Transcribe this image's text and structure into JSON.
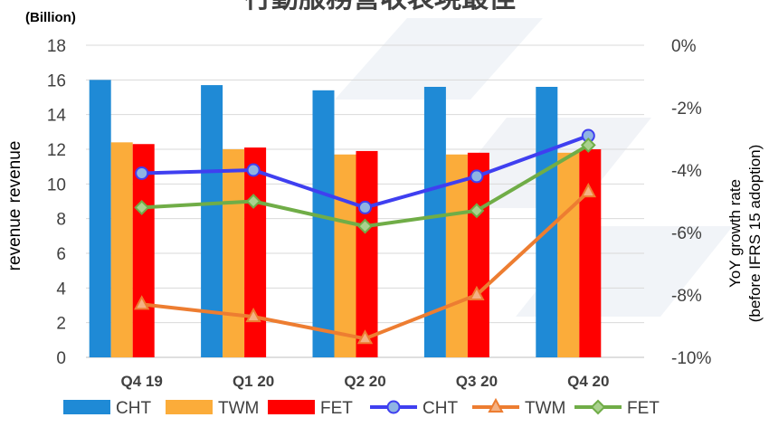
{
  "chart_data": {
    "type": "bar",
    "title": "行動服務營收表現最佳",
    "unit_note": "(Billion)",
    "categories": [
      "Q4 19",
      "Q1 20",
      "Q2 20",
      "Q3 20",
      "Q4 20"
    ],
    "y_left": {
      "label": "revenue",
      "duplicated_label": "revenue",
      "range": [
        0,
        18
      ],
      "ticks": [
        0,
        2,
        4,
        6,
        8,
        10,
        12,
        14,
        16,
        18
      ]
    },
    "y_right": {
      "label_line1": "YoY growth rate",
      "label_line2": "(before IFRS 15 adoption)",
      "range": [
        -10,
        0
      ],
      "ticks": [
        -10,
        -8,
        -6,
        -4,
        -2,
        0
      ],
      "tick_labels": [
        "-10%",
        "-8%",
        "-6%",
        "-4%",
        "-2%",
        "0%"
      ]
    },
    "bar_series": [
      {
        "name": "CHT",
        "color": "#1f8ad6",
        "values": [
          16.0,
          15.7,
          15.4,
          15.6,
          15.6
        ]
      },
      {
        "name": "TWM",
        "color": "#fbac3a",
        "values": [
          12.4,
          12.0,
          11.7,
          11.7,
          11.8
        ]
      },
      {
        "name": "FET",
        "color": "#ff0000",
        "values": [
          12.3,
          12.1,
          11.9,
          11.8,
          12.0
        ]
      }
    ],
    "line_series": [
      {
        "name": "CHT",
        "color": "#3f3ff0",
        "marker": "circle",
        "values": [
          -4.1,
          -4.0,
          -5.2,
          -4.2,
          -2.9
        ]
      },
      {
        "name": "TWM",
        "color": "#ed7d31",
        "marker": "triangle",
        "values": [
          -8.3,
          -8.7,
          -9.4,
          -8.0,
          -4.7
        ]
      },
      {
        "name": "FET",
        "color": "#70ad47",
        "marker": "diamond",
        "values": [
          -5.2,
          -5.0,
          -5.8,
          -5.3,
          -3.2
        ]
      }
    ],
    "grid": true,
    "legend_position": "bottom"
  }
}
